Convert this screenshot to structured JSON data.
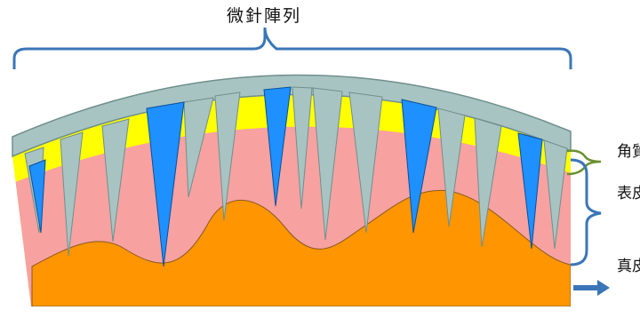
{
  "diagram": {
    "title": "微針陣列",
    "layers": {
      "stratum_corneum": "角質",
      "epidermis": "表皮層",
      "dermis": "真皮層"
    },
    "colors": {
      "bracket": "#3a75b8",
      "needle": "#a8c4c2",
      "needle_outline": "#6f8f8d",
      "highlight_needle": "#1e90ff",
      "stratum_corneum": "#ffff00",
      "epidermis": "#f7a1a1",
      "dermis": "#ff9500",
      "corneum_brace": "#6a8f2e",
      "arrow": "#3a75b8"
    }
  }
}
